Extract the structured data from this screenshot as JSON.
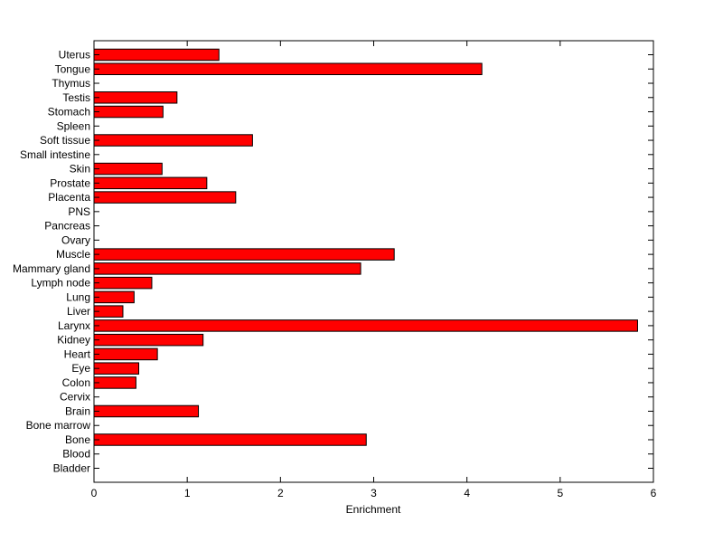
{
  "chart_data": {
    "type": "bar",
    "orientation": "horizontal",
    "title": "",
    "xlabel": "Enrichment",
    "ylabel": "",
    "xlim": [
      0,
      6
    ],
    "xticks": [
      0,
      1,
      2,
      3,
      4,
      5,
      6
    ],
    "grid": false,
    "legend": "none",
    "bar_color": "#ff0000",
    "bar_edge_color": "#000000",
    "categories": [
      "Bladder",
      "Blood",
      "Bone",
      "Bone marrow",
      "Brain",
      "Cervix",
      "Colon",
      "Eye",
      "Heart",
      "Kidney",
      "Larynx",
      "Liver",
      "Lung",
      "Lymph node",
      "Mammary gland",
      "Muscle",
      "Ovary",
      "Pancreas",
      "PNS",
      "Placenta",
      "Prostate",
      "Skin",
      "Small intestine",
      "Soft tissue",
      "Spleen",
      "Stomach",
      "Testis",
      "Thymus",
      "Tongue",
      "Uterus"
    ],
    "values": [
      0,
      0,
      2.92,
      0,
      1.12,
      0,
      0.45,
      0.48,
      0.68,
      1.17,
      5.83,
      0.31,
      0.43,
      0.62,
      2.86,
      3.22,
      0,
      0,
      0,
      1.52,
      1.21,
      0.73,
      0,
      1.7,
      0,
      0.74,
      0.89,
      0,
      4.16,
      1.34
    ]
  }
}
